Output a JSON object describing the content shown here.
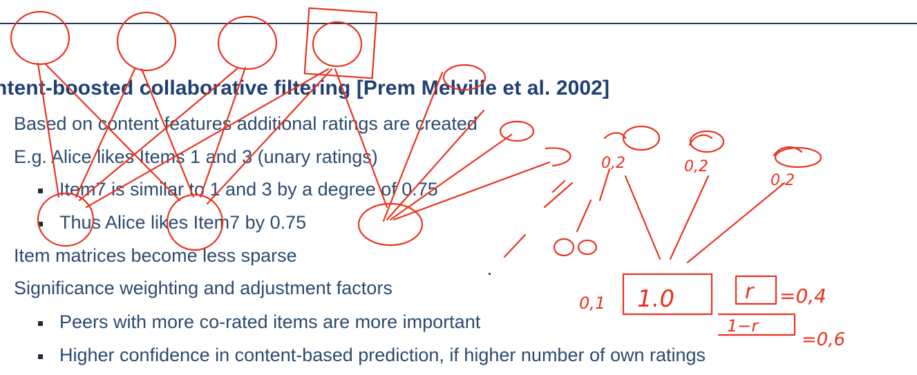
{
  "slide": {
    "title": "ntent-boosted collaborative filtering [Prem Melville et al. 2002]",
    "lines": [
      "Based on content features additional ratings are created",
      "E.g. Alice likes Items 1 and 3 (unary ratings)",
      "Item7 is similar to 1 and 3 by a degree of 0.75",
      "Thus Alice likes Item7 by 0.75",
      "Item matrices become less sparse",
      "Significance weighting and adjustment factors",
      "Peers with more co-rated items are more important",
      "Higher confidence in content-based prediction, if higher number of own ratings"
    ]
  },
  "annotations": {
    "color": "#e8321e",
    "labels": [
      "0,2",
      "0,2",
      "0,2",
      "0,1",
      "1.0",
      "r",
      "=0,4",
      "1−r",
      "=0,6"
    ]
  }
}
